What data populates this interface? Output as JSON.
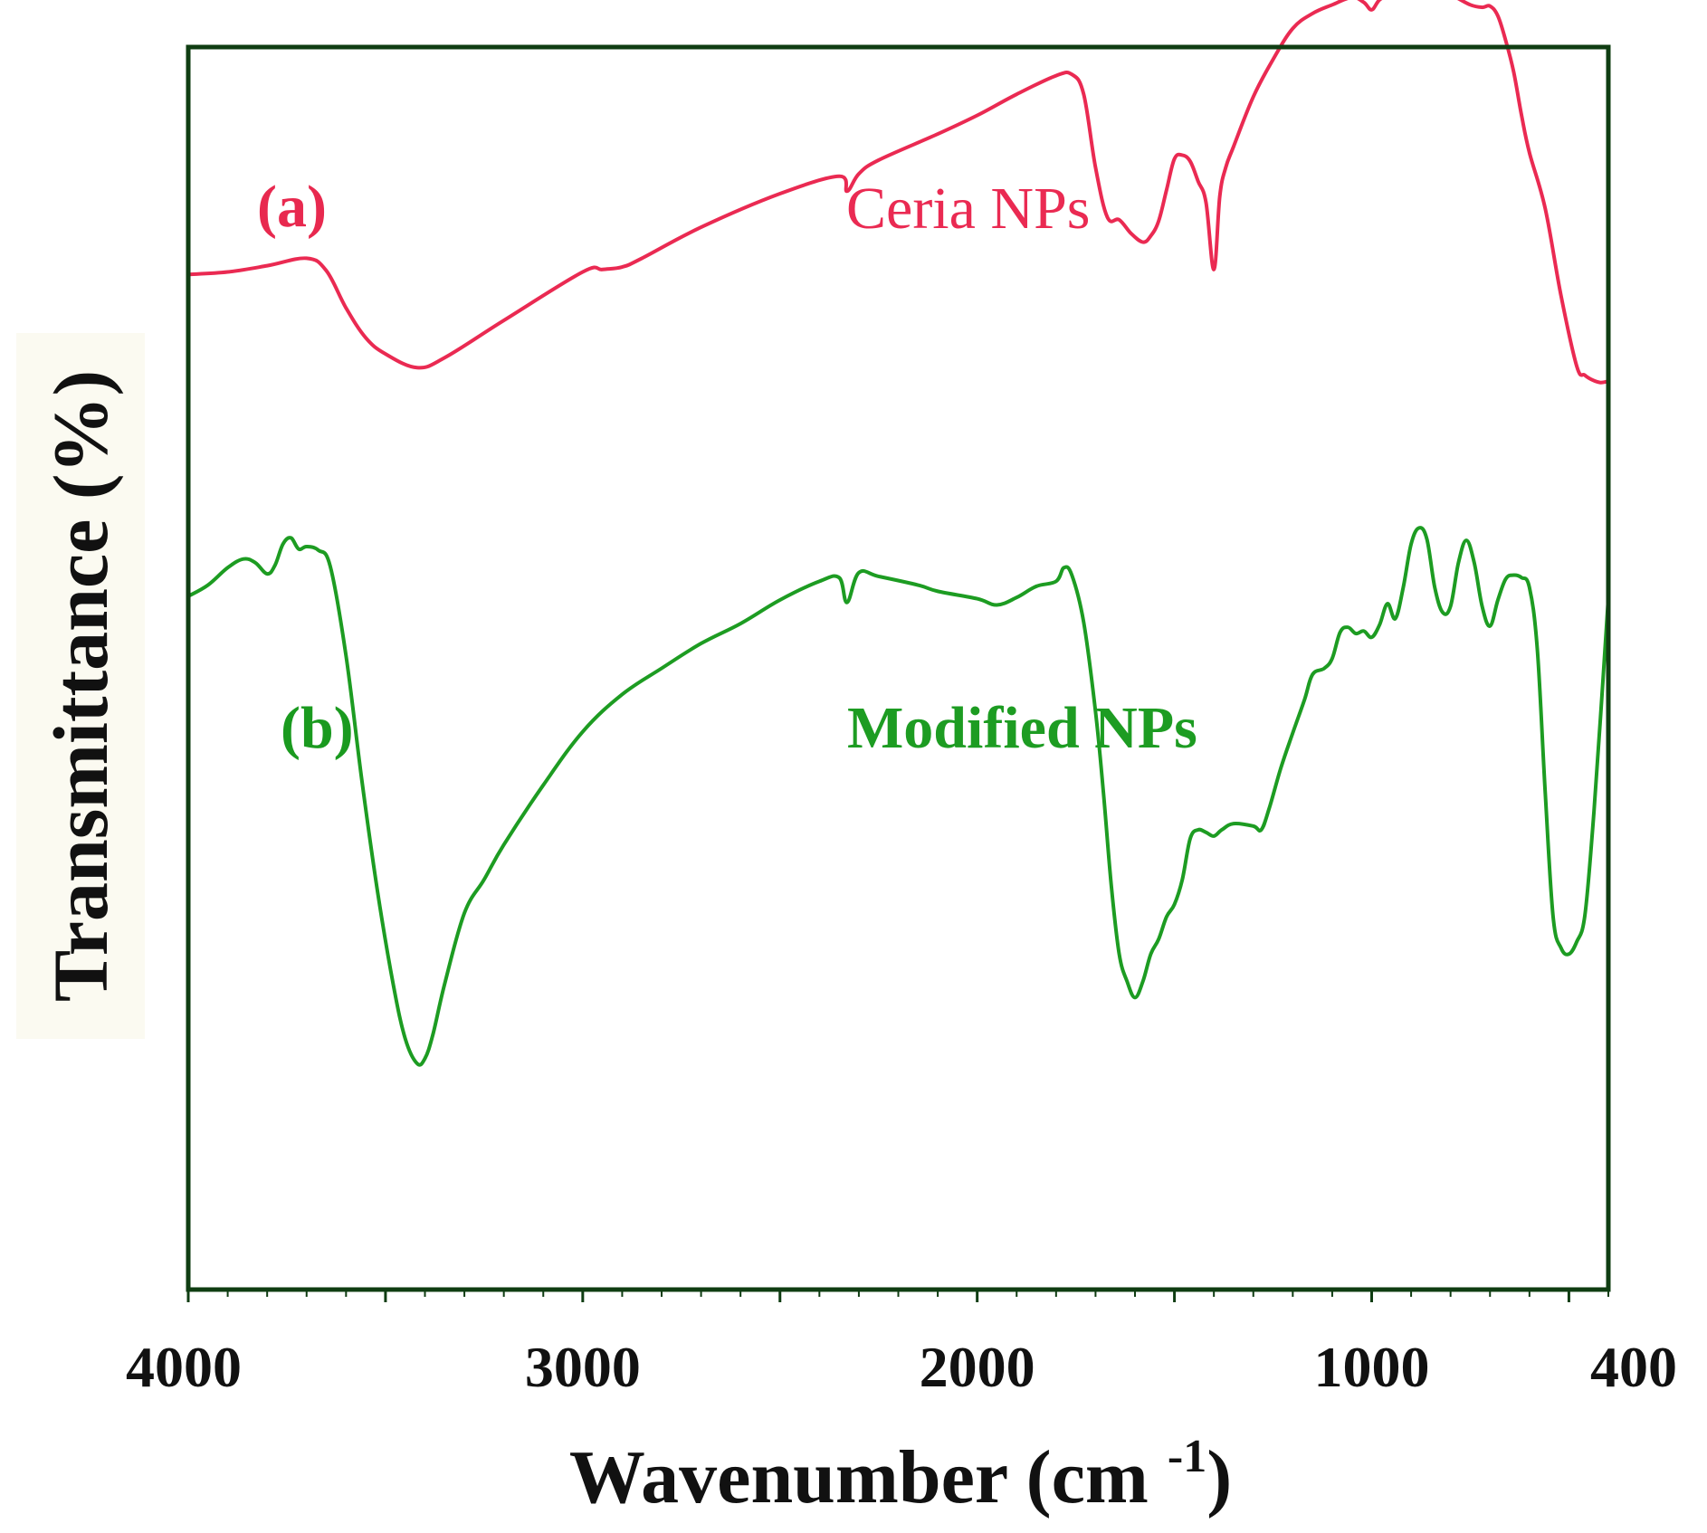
{
  "chart_data": {
    "type": "line",
    "title": "",
    "xlabel": "Wavenumber (cm",
    "xlabel_superscript": "-1",
    "xlabel_close": ")",
    "ylabel": "Transmittance (%)",
    "xlim": [
      4000,
      400
    ],
    "x_reversed": true,
    "y_ticks_shown": false,
    "x_ticks": [
      4000,
      3000,
      2000,
      1000,
      400
    ],
    "x_tick_labels": [
      "4000",
      "3000",
      "2000",
      "1000",
      "400"
    ],
    "grid": false,
    "ylim": [
      0,
      100
    ],
    "panel_labels": [
      {
        "text": "(a)",
        "color": "#e8294f",
        "series": 0
      },
      {
        "text": "(b)",
        "color": "#1a9a1f",
        "series": 1
      }
    ],
    "series": [
      {
        "name": "Ceria NPs",
        "color": "#ea2a52",
        "x": [
          4000,
          3900,
          3800,
          3700,
          3650,
          3600,
          3550,
          3500,
          3420,
          3350,
          3200,
          3000,
          2950,
          2900,
          2850,
          2700,
          2500,
          2350,
          2330,
          2300,
          2250,
          2100,
          2000,
          1900,
          1800,
          1760,
          1730,
          1700,
          1670,
          1640,
          1610,
          1580,
          1560,
          1540,
          1520,
          1500,
          1480,
          1460,
          1440,
          1420,
          1400,
          1385,
          1370,
          1350,
          1300,
          1250,
          1200,
          1150,
          1100,
          1050,
          1020,
          1000,
          980,
          950,
          900,
          850,
          800,
          750,
          720,
          700,
          680,
          660,
          640,
          620,
          600,
          560,
          520,
          480,
          460,
          440,
          420,
          400
        ],
        "y": [
          81.7,
          81.9,
          82.4,
          83.0,
          82.0,
          79.0,
          76.6,
          75.3,
          74.2,
          75.0,
          78.0,
          81.9,
          82.1,
          82.3,
          83.0,
          85.5,
          88.2,
          89.6,
          88.4,
          89.8,
          90.9,
          93.0,
          94.5,
          96.2,
          97.7,
          97.8,
          96.2,
          90.3,
          86.3,
          86.1,
          85.0,
          84.3,
          84.8,
          86.0,
          88.5,
          91.0,
          91.3,
          90.8,
          89.2,
          87.5,
          82.1,
          88.0,
          90.3,
          92.0,
          96.0,
          99.0,
          101.5,
          102.7,
          103.4,
          104.0,
          103.6,
          103.0,
          103.8,
          104.3,
          104.6,
          104.6,
          104.2,
          103.4,
          103.2,
          103.3,
          102.5,
          100.5,
          98.0,
          94.5,
          91.5,
          87.0,
          80.0,
          74.3,
          73.6,
          73.2,
          73.0,
          73.1
        ]
      },
      {
        "name": "Modified NPs",
        "color": "#1d9c22",
        "x": [
          4000,
          3950,
          3900,
          3860,
          3830,
          3800,
          3780,
          3760,
          3740,
          3720,
          3700,
          3670,
          3640,
          3600,
          3560,
          3520,
          3480,
          3450,
          3420,
          3400,
          3380,
          3350,
          3300,
          3250,
          3200,
          3100,
          3000,
          2900,
          2800,
          2700,
          2600,
          2500,
          2400,
          2350,
          2330,
          2300,
          2250,
          2150,
          2100,
          2000,
          1950,
          1900,
          1850,
          1800,
          1780,
          1760,
          1730,
          1700,
          1680,
          1660,
          1640,
          1620,
          1600,
          1580,
          1560,
          1540,
          1520,
          1500,
          1480,
          1460,
          1440,
          1420,
          1400,
          1380,
          1350,
          1300,
          1280,
          1260,
          1230,
          1200,
          1170,
          1150,
          1120,
          1100,
          1080,
          1060,
          1040,
          1020,
          1000,
          980,
          960,
          940,
          920,
          900,
          880,
          860,
          840,
          820,
          800,
          780,
          760,
          740,
          720,
          700,
          680,
          660,
          640,
          620,
          600,
          580,
          560,
          540,
          520,
          500,
          480,
          460,
          440,
          420,
          400
        ],
        "y": [
          55.8,
          56.7,
          58.1,
          58.8,
          58.5,
          57.6,
          58.3,
          60.0,
          60.5,
          59.6,
          59.8,
          59.5,
          58.2,
          51.0,
          41.0,
          32.0,
          24.5,
          20.2,
          18.2,
          18.6,
          20.5,
          24.6,
          30.3,
          33.0,
          35.8,
          40.6,
          44.9,
          47.9,
          50.0,
          52.0,
          53.6,
          55.5,
          57.0,
          57.3,
          55.3,
          57.7,
          57.4,
          56.7,
          56.2,
          55.6,
          55.1,
          55.7,
          56.6,
          57.0,
          58.1,
          57.5,
          53.7,
          46.5,
          40.0,
          32.5,
          27.0,
          24.8,
          23.5,
          24.8,
          27.0,
          28.2,
          30.0,
          31.0,
          33.0,
          36.3,
          37.0,
          36.8,
          36.5,
          37.0,
          37.5,
          37.3,
          37.0,
          38.7,
          42.0,
          44.8,
          47.5,
          49.5,
          50.0,
          50.8,
          52.9,
          53.3,
          52.8,
          53.0,
          52.5,
          53.5,
          55.2,
          54.0,
          56.5,
          60.0,
          61.3,
          60.4,
          56.5,
          54.5,
          55.0,
          58.5,
          60.3,
          58.5,
          55.0,
          53.4,
          55.5,
          57.2,
          57.5,
          57.3,
          56.5,
          51.5,
          40.0,
          30.0,
          27.5,
          27.0,
          28.0,
          30.0,
          37.0,
          46.0,
          55.7
        ]
      }
    ]
  }
}
